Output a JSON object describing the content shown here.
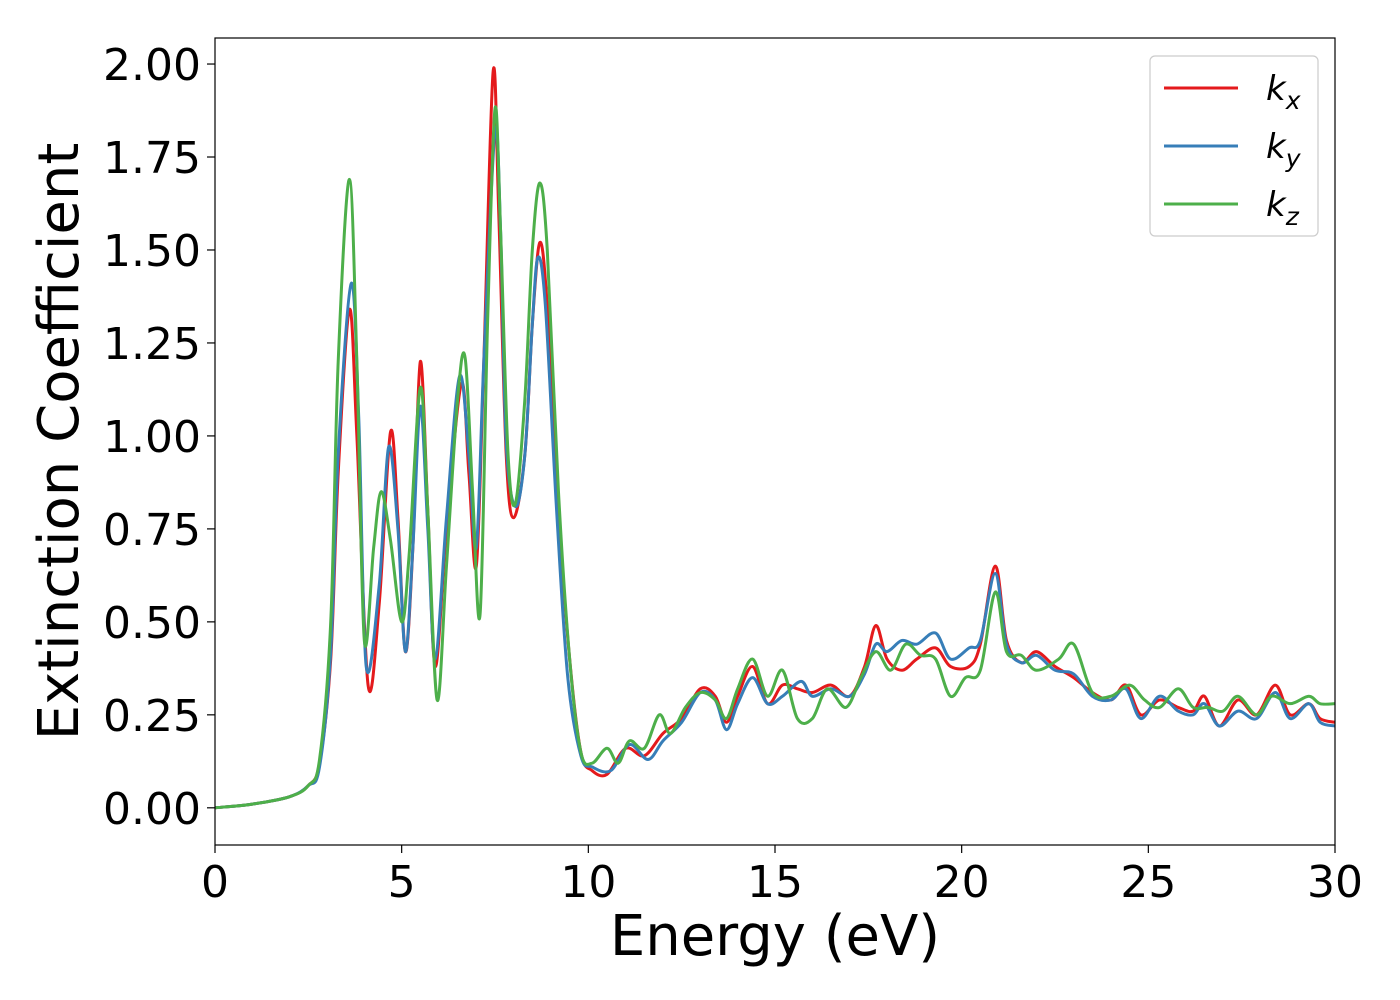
{
  "chart_data": {
    "type": "line",
    "xlabel": "Energy (eV)",
    "ylabel": "Extinction Coefficient",
    "xlim": [
      0,
      30
    ],
    "ylim": [
      -0.1,
      2.07
    ],
    "xticks": [
      0,
      5,
      10,
      15,
      20,
      25,
      30
    ],
    "xtick_labels": [
      "0",
      "5",
      "10",
      "15",
      "20",
      "25",
      "30"
    ],
    "yticks": [
      0,
      0.25,
      0.5,
      0.75,
      1.0,
      1.25,
      1.5,
      1.75,
      2.0
    ],
    "ytick_labels": [
      "0.00",
      "0.25",
      "0.50",
      "0.75",
      "1.00",
      "1.25",
      "1.50",
      "1.75",
      "2.00"
    ],
    "grid": false,
    "legend_position": "top-right",
    "series": [
      {
        "name": "k_x",
        "label_base": "k",
        "label_sub": "x",
        "color": "#e41a1c",
        "points": [
          [
            0,
            0
          ],
          [
            1,
            0.01
          ],
          [
            2,
            0.03
          ],
          [
            2.5,
            0.06
          ],
          [
            2.8,
            0.12
          ],
          [
            3.1,
            0.4
          ],
          [
            3.3,
            0.9
          ],
          [
            3.6,
            1.34
          ],
          [
            3.8,
            1.0
          ],
          [
            4.1,
            0.33
          ],
          [
            4.4,
            0.55
          ],
          [
            4.7,
            1.01
          ],
          [
            4.9,
            0.78
          ],
          [
            5.1,
            0.42
          ],
          [
            5.3,
            0.7
          ],
          [
            5.5,
            1.2
          ],
          [
            5.7,
            0.8
          ],
          [
            5.9,
            0.38
          ],
          [
            6.2,
            0.75
          ],
          [
            6.6,
            1.14
          ],
          [
            6.8,
            0.9
          ],
          [
            7.0,
            0.65
          ],
          [
            7.2,
            1.2
          ],
          [
            7.45,
            1.98
          ],
          [
            7.6,
            1.6
          ],
          [
            7.8,
            0.95
          ],
          [
            8.0,
            0.78
          ],
          [
            8.3,
            0.95
          ],
          [
            8.5,
            1.3
          ],
          [
            8.7,
            1.52
          ],
          [
            8.9,
            1.35
          ],
          [
            9.2,
            0.8
          ],
          [
            9.5,
            0.4
          ],
          [
            9.8,
            0.15
          ],
          [
            10.1,
            0.1
          ],
          [
            10.5,
            0.09
          ],
          [
            11.0,
            0.16
          ],
          [
            11.5,
            0.14
          ],
          [
            12.0,
            0.2
          ],
          [
            12.5,
            0.24
          ],
          [
            13.0,
            0.32
          ],
          [
            13.4,
            0.3
          ],
          [
            13.7,
            0.23
          ],
          [
            14.0,
            0.3
          ],
          [
            14.4,
            0.38
          ],
          [
            14.8,
            0.28
          ],
          [
            15.2,
            0.33
          ],
          [
            15.6,
            0.32
          ],
          [
            16.0,
            0.31
          ],
          [
            16.5,
            0.33
          ],
          [
            17.0,
            0.3
          ],
          [
            17.4,
            0.38
          ],
          [
            17.7,
            0.49
          ],
          [
            18.0,
            0.4
          ],
          [
            18.4,
            0.37
          ],
          [
            18.8,
            0.4
          ],
          [
            19.3,
            0.43
          ],
          [
            19.7,
            0.38
          ],
          [
            20.2,
            0.38
          ],
          [
            20.5,
            0.44
          ],
          [
            20.9,
            0.65
          ],
          [
            21.2,
            0.45
          ],
          [
            21.6,
            0.39
          ],
          [
            22.0,
            0.42
          ],
          [
            22.5,
            0.38
          ],
          [
            23.0,
            0.35
          ],
          [
            23.5,
            0.31
          ],
          [
            24.0,
            0.29
          ],
          [
            24.4,
            0.33
          ],
          [
            24.8,
            0.25
          ],
          [
            25.3,
            0.29
          ],
          [
            25.8,
            0.27
          ],
          [
            26.2,
            0.26
          ],
          [
            26.5,
            0.3
          ],
          [
            26.9,
            0.22
          ],
          [
            27.4,
            0.29
          ],
          [
            27.9,
            0.25
          ],
          [
            28.4,
            0.33
          ],
          [
            28.8,
            0.25
          ],
          [
            29.3,
            0.28
          ],
          [
            29.6,
            0.24
          ],
          [
            30.0,
            0.23
          ]
        ]
      },
      {
        "name": "k_y",
        "label_base": "k",
        "label_sub": "y",
        "color": "#377eb8",
        "points": [
          [
            0,
            0
          ],
          [
            1,
            0.01
          ],
          [
            2,
            0.03
          ],
          [
            2.5,
            0.06
          ],
          [
            2.8,
            0.11
          ],
          [
            3.1,
            0.42
          ],
          [
            3.3,
            0.95
          ],
          [
            3.65,
            1.41
          ],
          [
            3.85,
            1.05
          ],
          [
            4.05,
            0.38
          ],
          [
            4.4,
            0.6
          ],
          [
            4.65,
            0.97
          ],
          [
            4.9,
            0.75
          ],
          [
            5.1,
            0.42
          ],
          [
            5.3,
            0.7
          ],
          [
            5.5,
            1.08
          ],
          [
            5.7,
            0.75
          ],
          [
            5.9,
            0.4
          ],
          [
            6.2,
            0.78
          ],
          [
            6.55,
            1.16
          ],
          [
            6.8,
            0.95
          ],
          [
            7.0,
            0.7
          ],
          [
            7.2,
            1.2
          ],
          [
            7.5,
            1.82
          ],
          [
            7.65,
            1.55
          ],
          [
            7.8,
            0.98
          ],
          [
            8.05,
            0.81
          ],
          [
            8.3,
            0.95
          ],
          [
            8.5,
            1.3
          ],
          [
            8.65,
            1.48
          ],
          [
            8.85,
            1.35
          ],
          [
            9.15,
            0.8
          ],
          [
            9.45,
            0.35
          ],
          [
            9.8,
            0.14
          ],
          [
            10.1,
            0.11
          ],
          [
            10.6,
            0.1
          ],
          [
            11.1,
            0.17
          ],
          [
            11.6,
            0.13
          ],
          [
            12.0,
            0.18
          ],
          [
            12.5,
            0.23
          ],
          [
            13.0,
            0.31
          ],
          [
            13.4,
            0.29
          ],
          [
            13.7,
            0.21
          ],
          [
            14.0,
            0.28
          ],
          [
            14.4,
            0.35
          ],
          [
            14.8,
            0.28
          ],
          [
            15.2,
            0.3
          ],
          [
            15.7,
            0.34
          ],
          [
            16.0,
            0.3
          ],
          [
            16.5,
            0.32
          ],
          [
            17.0,
            0.3
          ],
          [
            17.4,
            0.36
          ],
          [
            17.7,
            0.44
          ],
          [
            18.0,
            0.42
          ],
          [
            18.4,
            0.45
          ],
          [
            18.8,
            0.44
          ],
          [
            19.3,
            0.47
          ],
          [
            19.7,
            0.4
          ],
          [
            20.2,
            0.43
          ],
          [
            20.5,
            0.45
          ],
          [
            20.9,
            0.63
          ],
          [
            21.2,
            0.44
          ],
          [
            21.6,
            0.39
          ],
          [
            22.0,
            0.41
          ],
          [
            22.5,
            0.37
          ],
          [
            23.0,
            0.36
          ],
          [
            23.5,
            0.3
          ],
          [
            24.0,
            0.29
          ],
          [
            24.4,
            0.32
          ],
          [
            24.8,
            0.24
          ],
          [
            25.3,
            0.3
          ],
          [
            25.8,
            0.26
          ],
          [
            26.2,
            0.25
          ],
          [
            26.5,
            0.28
          ],
          [
            26.9,
            0.22
          ],
          [
            27.4,
            0.26
          ],
          [
            27.9,
            0.24
          ],
          [
            28.4,
            0.31
          ],
          [
            28.8,
            0.24
          ],
          [
            29.3,
            0.28
          ],
          [
            29.6,
            0.23
          ],
          [
            30.0,
            0.22
          ]
        ]
      },
      {
        "name": "k_z",
        "label_base": "k",
        "label_sub": "z",
        "color": "#4daf4a",
        "points": [
          [
            0,
            0
          ],
          [
            1,
            0.01
          ],
          [
            2,
            0.03
          ],
          [
            2.5,
            0.06
          ],
          [
            2.8,
            0.13
          ],
          [
            3.1,
            0.5
          ],
          [
            3.3,
            1.2
          ],
          [
            3.6,
            1.69
          ],
          [
            3.8,
            1.2
          ],
          [
            4.0,
            0.45
          ],
          [
            4.25,
            0.7
          ],
          [
            4.45,
            0.85
          ],
          [
            4.7,
            0.72
          ],
          [
            5.0,
            0.5
          ],
          [
            5.2,
            0.68
          ],
          [
            5.5,
            1.13
          ],
          [
            5.7,
            0.8
          ],
          [
            5.95,
            0.29
          ],
          [
            6.2,
            0.65
          ],
          [
            6.5,
            1.1
          ],
          [
            6.7,
            1.21
          ],
          [
            6.9,
            0.85
          ],
          [
            7.1,
            0.52
          ],
          [
            7.3,
            1.3
          ],
          [
            7.5,
            1.88
          ],
          [
            7.65,
            1.55
          ],
          [
            7.85,
            0.95
          ],
          [
            8.05,
            0.82
          ],
          [
            8.3,
            1.1
          ],
          [
            8.5,
            1.5
          ],
          [
            8.7,
            1.68
          ],
          [
            8.9,
            1.5
          ],
          [
            9.2,
            0.85
          ],
          [
            9.5,
            0.4
          ],
          [
            9.8,
            0.15
          ],
          [
            10.1,
            0.12
          ],
          [
            10.5,
            0.16
          ],
          [
            10.8,
            0.12
          ],
          [
            11.1,
            0.18
          ],
          [
            11.5,
            0.16
          ],
          [
            11.9,
            0.25
          ],
          [
            12.2,
            0.2
          ],
          [
            12.6,
            0.27
          ],
          [
            13.0,
            0.31
          ],
          [
            13.4,
            0.29
          ],
          [
            13.7,
            0.24
          ],
          [
            14.0,
            0.32
          ],
          [
            14.4,
            0.4
          ],
          [
            14.8,
            0.3
          ],
          [
            15.2,
            0.37
          ],
          [
            15.6,
            0.24
          ],
          [
            16.0,
            0.24
          ],
          [
            16.4,
            0.32
          ],
          [
            16.9,
            0.27
          ],
          [
            17.3,
            0.35
          ],
          [
            17.7,
            0.42
          ],
          [
            18.1,
            0.37
          ],
          [
            18.5,
            0.44
          ],
          [
            18.9,
            0.41
          ],
          [
            19.3,
            0.4
          ],
          [
            19.7,
            0.3
          ],
          [
            20.1,
            0.35
          ],
          [
            20.5,
            0.37
          ],
          [
            20.9,
            0.58
          ],
          [
            21.2,
            0.42
          ],
          [
            21.6,
            0.41
          ],
          [
            22.0,
            0.37
          ],
          [
            22.6,
            0.4
          ],
          [
            23.0,
            0.44
          ],
          [
            23.5,
            0.31
          ],
          [
            24.0,
            0.3
          ],
          [
            24.5,
            0.33
          ],
          [
            24.9,
            0.29
          ],
          [
            25.3,
            0.27
          ],
          [
            25.8,
            0.32
          ],
          [
            26.2,
            0.27
          ],
          [
            26.6,
            0.27
          ],
          [
            27.0,
            0.26
          ],
          [
            27.4,
            0.3
          ],
          [
            27.9,
            0.25
          ],
          [
            28.3,
            0.3
          ],
          [
            28.8,
            0.28
          ],
          [
            29.3,
            0.3
          ],
          [
            29.6,
            0.28
          ],
          [
            30.0,
            0.28
          ]
        ]
      }
    ]
  }
}
